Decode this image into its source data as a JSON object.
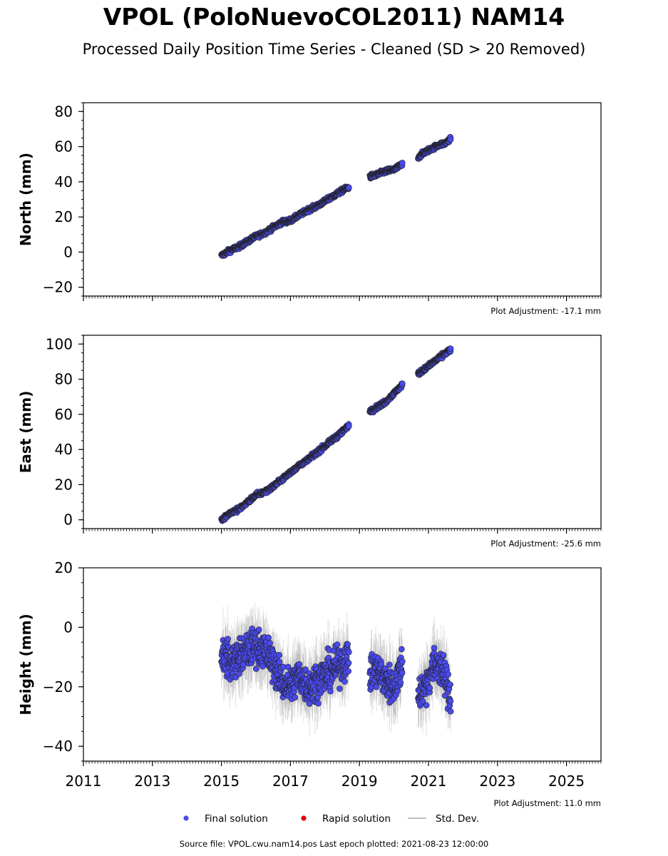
{
  "title": "VPOL (PoloNuevoCOL2011) NAM14",
  "subtitle": "Processed Daily Position Time Series - Cleaned (SD > 20 Removed)",
  "source_note": "Source file: VPOL.cwu.nam14.pos  Last epoch plotted: 2021-08-23 12:00:00",
  "colors": {
    "final": "#4a4af0",
    "rapid": "#e00000",
    "stddev": "#aaaaaa",
    "edge": "#222222"
  },
  "legend": [
    {
      "label": "Final solution",
      "kind": "final"
    },
    {
      "label": "Rapid solution",
      "kind": "rapid"
    },
    {
      "label": "Std. Dev.",
      "kind": "stddev"
    }
  ],
  "chart_data": [
    {
      "type": "scatter",
      "ylabel": "North (mm)",
      "xlim": [
        2011,
        2026
      ],
      "ylim": [
        -25,
        85
      ],
      "yticks": [
        -20,
        0,
        20,
        40,
        60,
        80
      ],
      "xticks": [
        2011,
        2013,
        2015,
        2017,
        2019,
        2021,
        2023,
        2025
      ],
      "show_xtick_labels": false,
      "adjustment": "Plot Adjustment: -17.1 mm",
      "series": [
        {
          "x": [
            2015.0,
            2015.25,
            2015.5,
            2015.75,
            2016.0,
            2016.25,
            2016.5,
            2016.75,
            2017.0,
            2017.25,
            2017.5,
            2017.75,
            2018.0,
            2018.25,
            2018.5,
            2018.7
          ],
          "y": [
            -2,
            1,
            3,
            6,
            9,
            11,
            14,
            17,
            18,
            21,
            24,
            26,
            29,
            32,
            35,
            37
          ]
        },
        {
          "x": [
            2019.3,
            2019.5,
            2019.75,
            2020.0,
            2020.25
          ],
          "y": [
            43,
            44,
            46,
            47,
            50
          ]
        },
        {
          "x": [
            2020.7,
            2020.9,
            2021.1,
            2021.3,
            2021.5,
            2021.65
          ],
          "y": [
            54,
            57,
            59,
            61,
            62,
            65
          ]
        }
      ]
    },
    {
      "type": "scatter",
      "ylabel": "East (mm)",
      "xlim": [
        2011,
        2026
      ],
      "ylim": [
        -5,
        105
      ],
      "yticks": [
        0,
        20,
        40,
        60,
        80,
        100
      ],
      "xticks": [
        2011,
        2013,
        2015,
        2017,
        2019,
        2021,
        2023,
        2025
      ],
      "show_xtick_labels": false,
      "adjustment": "Plot Adjustment: -25.6 mm",
      "series": [
        {
          "x": [
            2015.0,
            2015.25,
            2015.5,
            2015.75,
            2016.0,
            2016.25,
            2016.5,
            2016.75,
            2017.0,
            2017.25,
            2017.5,
            2017.75,
            2018.0,
            2018.25,
            2018.5,
            2018.7
          ],
          "y": [
            0,
            4,
            6,
            10,
            14,
            16,
            19,
            23,
            27,
            31,
            34,
            38,
            42,
            46,
            50,
            54
          ]
        },
        {
          "x": [
            2019.3,
            2019.5,
            2019.75,
            2020.0,
            2020.25
          ],
          "y": [
            62,
            64,
            67,
            72,
            77
          ]
        },
        {
          "x": [
            2020.7,
            2020.9,
            2021.1,
            2021.3,
            2021.5,
            2021.65
          ],
          "y": [
            83,
            86,
            89,
            92,
            95,
            97
          ]
        }
      ]
    },
    {
      "type": "scatter",
      "ylabel": "Height (mm)",
      "xlim": [
        2011,
        2026
      ],
      "ylim": [
        -45,
        20
      ],
      "yticks": [
        -40,
        -20,
        0,
        20
      ],
      "xticks": [
        2011,
        2013,
        2015,
        2017,
        2019,
        2021,
        2023,
        2025
      ],
      "xtick_labels": [
        "2011",
        "2013",
        "2015",
        "2017",
        "2019",
        "2021",
        "2023",
        "2025"
      ],
      "show_xtick_labels": true,
      "adjustment": "Plot Adjustment: 11.0 mm",
      "series": [
        {
          "x": [
            2015.0,
            2015.25,
            2015.5,
            2015.75,
            2016.0,
            2016.25,
            2016.5,
            2016.75,
            2017.0,
            2017.25,
            2017.5,
            2017.75,
            2018.0,
            2018.25,
            2018.5,
            2018.7
          ],
          "y": [
            -8,
            -12,
            -10,
            -8,
            -6,
            -8,
            -12,
            -18,
            -20,
            -16,
            -20,
            -18,
            -16,
            -14,
            -12,
            -10
          ]
        },
        {
          "x": [
            2019.3,
            2019.5,
            2019.75,
            2020.0,
            2020.25
          ],
          "y": [
            -16,
            -14,
            -18,
            -20,
            -12
          ]
        },
        {
          "x": [
            2020.7,
            2020.9,
            2021.1,
            2021.3,
            2021.5,
            2021.65
          ],
          "y": [
            -22,
            -20,
            -14,
            -12,
            -18,
            -24
          ]
        }
      ]
    }
  ]
}
